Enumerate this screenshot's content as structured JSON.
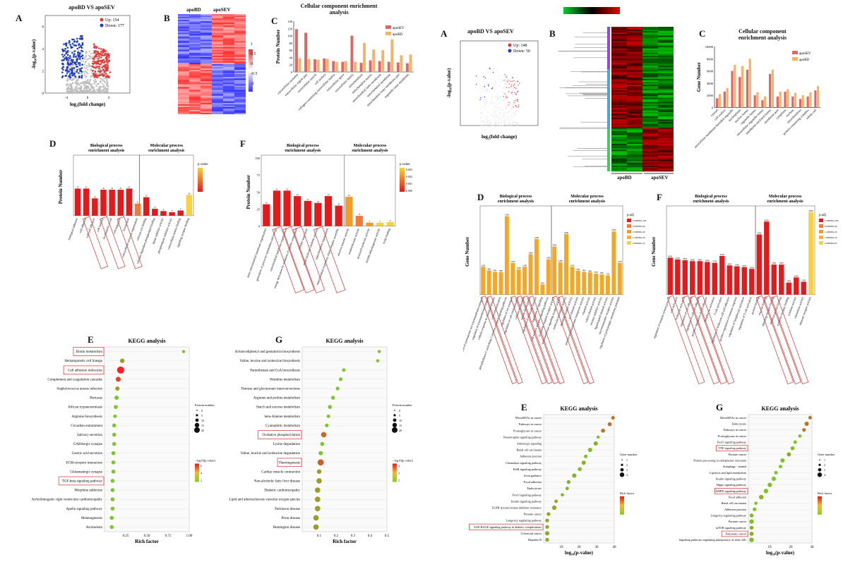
{
  "left": {
    "A": {
      "label": "A",
      "title": "apoBD VS apoSEV",
      "up": "Up: 154",
      "down": "Down: 177",
      "xlabel": "log₂(fold change)",
      "ylabel": "-log₁₀(p-value)",
      "up_color": "#e53935",
      "down_color": "#1f3fbf",
      "ns_color": "#bdbdbd",
      "chart_data": {
        "type": "scatter",
        "title": "apoBD VS apoSEV",
        "xlabel": "log₂(fold change)",
        "ylabel": "-log₁₀(p-value)",
        "xticks": [
          "-4",
          "0",
          "4"
        ],
        "yticks": [
          "0",
          "2",
          "4",
          "6"
        ],
        "series": [
          {
            "name": "Up: 154"
          },
          {
            "name": "Down: 177"
          }
        ]
      }
    },
    "B": {
      "label": "B",
      "col1": "apoBD",
      "col2": "apoSEV",
      "scale": [
        "1",
        "0.5",
        "0",
        "-0.5",
        "-1"
      ]
    },
    "C": {
      "label": "C",
      "title": "Cellular component enrichment analysis",
      "ylabel": "Protein Number",
      "legend": [
        "apoSEV",
        "apoBD"
      ],
      "colors": [
        "#e06666",
        "#f3b36b"
      ],
      "chart_data": {
        "type": "bar",
        "yticks": [
          "0",
          "20",
          "40",
          "60",
          "80",
          "100",
          "120",
          "140"
        ],
        "categories": [
          "extracellular exosome",
          "extracellular region part",
          "extracellular vesicle",
          "cell surface",
          "collagen-containing extracellular matrix",
          "extracellular space",
          "extracellular matrix",
          "mitochondrion",
          "mitochondrial matrix",
          "mitochondrial inner membrane",
          "mitochondrial membrane",
          "mitochondrial inner membrane part",
          "organelle inner membrane"
        ],
        "series": [
          {
            "name": "apoSEV",
            "values": [
              118,
              108,
              35,
              37,
              30,
              28,
              100,
              25,
              32,
              30,
              28,
              26,
              24
            ]
          },
          {
            "name": "apoBD",
            "values": [
              38,
              36,
              34,
              36,
              28,
              30,
              28,
              80,
              62,
              60,
              90,
              46,
              48
            ]
          }
        ]
      }
    },
    "D": {
      "label": "D",
      "title1": "Biological process enrichment analysis",
      "title2": "Molecular process enrichment analysis",
      "ylabel": "Protein Number",
      "legend_title": "p.value",
      "chart_data": {
        "type": "bar",
        "categories": [
          "biological adhesion",
          "cell adhesion",
          "cell-cell adhesion",
          "cell motility",
          "localization of cell",
          "cell migration",
          "locomotion",
          "extracellular structure organization",
          "calcium ion binding",
          "calcium-dependent phospholipid binding",
          "lipase inhibitor activity",
          "phospholipase inhibitor activity",
          "extracellular matrix binding",
          "signaling receptor binding"
        ],
        "values": [
          47,
          47,
          30,
          45,
          45,
          45,
          47,
          21,
          32,
          12,
          8,
          6,
          9,
          36
        ]
      }
    },
    "F": {
      "label": "F",
      "title1": "Biological process enrichment analysis",
      "title2": "Molecular process enrichment analysis",
      "ylabel": "Protein Number",
      "legend_title": "p.value",
      "legend_values": [
        "0.003",
        "0.002",
        "0.001",
        "0.000"
      ],
      "chart_data": {
        "type": "bar",
        "yticks": [
          "0",
          "25",
          "50",
          "75",
          "100"
        ],
        "categories": [
          "inner mitochondrial membrane organization",
          "generation of precursor metabolites and energy",
          "mitochondrial membrane organization",
          "energy derivation by oxidation of organic compounds",
          "cellular respiration",
          "small molecule catabolic process",
          "mitochondrion organization",
          "mitochondrial respiratory chain complex assembly",
          "electron transfer activity",
          "oxidoreductase activity",
          "structural molecule activity",
          "NADH dehydrogenase activity",
          "NAD binding"
        ],
        "values": [
          32,
          52,
          52,
          44,
          37,
          34,
          44,
          30,
          43,
          15,
          5,
          5,
          6
        ]
      }
    },
    "E": {
      "label": "E",
      "title": "KEGG analysis",
      "xlabel": "Rich factor",
      "size_title": "Protein number",
      "size_vals": [
        "0",
        "5",
        "10",
        "15",
        "20"
      ],
      "color_title": "−log10(p.value)",
      "color_vals": [
        "6",
        "4",
        "2"
      ],
      "rows": [
        "Biotin metabolism",
        "Hematopoietic cell lineage",
        "Cell adhesion molecules",
        "Complement and coagulation cascades",
        "Staphylococcus aureus infection",
        "Pertussis",
        "African trypanosomiasis",
        "Arginine biosynthesis",
        "Circadian entrainment",
        "Salivary secretion",
        "GABAergic synapse",
        "Gastric acid secretion",
        "ECM-receptor interaction",
        "Glutamatergic synapse",
        "TGF-beta signaling pathway",
        "Morphine addiction",
        "Arrhythmogenic right ventricular cardiomyopathy",
        "Apelin signaling pathway",
        "Melanogenesis",
        "Alcoholism"
      ],
      "boxed": [
        0,
        2,
        14
      ],
      "xticks": [
        "0.25",
        "0.50",
        "0.75",
        "1.00"
      ],
      "chart_data": {
        "type": "scatter",
        "x": [
          0.98,
          0.22,
          0.2,
          0.17,
          0.16,
          0.15,
          0.14,
          0.13,
          0.12,
          0.12,
          0.12,
          0.11,
          0.11,
          0.11,
          0.1,
          0.1,
          0.1,
          0.1,
          0.09,
          0.09
        ],
        "size": [
          2,
          6,
          20,
          8,
          5,
          5,
          4,
          3,
          4,
          4,
          4,
          4,
          4,
          4,
          4,
          4,
          4,
          4,
          4,
          4
        ],
        "color": [
          2,
          3,
          7,
          5,
          3,
          2,
          2,
          2,
          2,
          2,
          2,
          2,
          2,
          2,
          2,
          2,
          2,
          2,
          2,
          2
        ]
      }
    },
    "G": {
      "label": "G",
      "title": "KEGG analysis",
      "xlabel": "Rich factor",
      "size_title": "Protein number",
      "size_vals": [
        "0",
        "5",
        "10",
        "15",
        "20"
      ],
      "color_title": "−log10(p.value)",
      "color_vals": [
        "4",
        "3",
        "2"
      ],
      "rows": [
        "dichlorodiphenyl and gentamicin biosynthesis",
        "Valine, leucine and isoleucine biosynthesis",
        "Pantothenate and CoA biosynthesis",
        "Histidine metabolism",
        "Pentose and glucuronate interconversions",
        "Arginine and proline metabolism",
        "Starch and sucrose metabolism",
        "beta-Alanine metabolism",
        "Cyanophilic metabolism",
        "Oxidative phosphorylation",
        "Lysine degradation",
        "Valine, leucine and isoleucine degradation",
        "Thermogenesis",
        "Cardiac muscle contraction",
        "Non-alcoholic fatty liver disease",
        "Diabetic cardiomyopathy",
        "Lipid and atherosclerosis vacuolar oxygen species",
        "Parkinson disease",
        "Prion disease",
        "Huntington disease"
      ],
      "boxed": [
        9,
        12
      ],
      "xticks": [
        "0.1",
        "0.2",
        "0.3",
        "0.4",
        "0.5"
      ],
      "chart_data": {
        "type": "scatter",
        "x": [
          0.5,
          0.49,
          0.27,
          0.25,
          0.23,
          0.2,
          0.18,
          0.17,
          0.16,
          0.14,
          0.13,
          0.12,
          0.12,
          0.11,
          0.11,
          0.1,
          0.1,
          0.1,
          0.09,
          0.09
        ],
        "size": [
          2,
          2,
          3,
          3,
          3,
          4,
          4,
          3,
          3,
          10,
          4,
          5,
          14,
          6,
          10,
          10,
          10,
          10,
          10,
          10
        ],
        "color": [
          2,
          2,
          2,
          2,
          2,
          2,
          2,
          2,
          2,
          4.2,
          2,
          2,
          4.5,
          3,
          3,
          3,
          3,
          3,
          3,
          3
        ]
      }
    }
  },
  "right": {
    "A": {
      "label": "A",
      "title": "apoBD VS apoSEV",
      "up": "Up: 148",
      "down": "Down: 50",
      "xlabel": "log₂(fold change)",
      "ylabel": "-log₁₀(p-value)",
      "up_color": "#e53935",
      "down_color": "#1f3fbf"
    },
    "B": {
      "label": "B",
      "col1": "apoBD",
      "col2": "apoSEV",
      "scale_label": "Scale bar"
    },
    "C": {
      "label": "C",
      "title": "Cellular component enrichment analysis",
      "ylabel": "Gene Number",
      "legend": [
        "apoSEV",
        "apoBD"
      ],
      "yticks": [
        "0",
        "2000",
        "4000",
        "6000",
        "8000",
        "10000"
      ],
      "chart_data": {
        "type": "bar",
        "categories": [
          "cytosol",
          "cell surface",
          "intracellular membrane-bounded organelle",
          "nucleoplasm",
          "nuclear lumen",
          "organelle lumen",
          "intracellular organelle lumen",
          "membrane-enclosed lumen",
          "membrane part",
          "cytoplasm",
          "nucleus",
          "mitochondrion",
          "protein-containing complex",
          "whole cell"
        ],
        "series": [
          {
            "name": "apoSEV",
            "values": [
              1500,
              2600,
              6000,
              5000,
              6200,
              2000,
              1200,
              5500,
              1800,
              2600,
              1800,
              1400,
              1800,
              2800
            ]
          },
          {
            "name": "apoBD",
            "values": [
              2200,
              3200,
              7000,
              6800,
              8000,
              2500,
              1800,
              6200,
              2600,
              3000,
              2400,
              2000,
              2500,
              3500
            ]
          }
        ]
      }
    },
    "D": {
      "label": "D",
      "title1": "Biological process enrichment analysis",
      "title2": "Molecular process enrichment analysis",
      "ylabel": "Gene Number",
      "legend_title": "p.adj",
      "legend_vals": [
        "2.500000e-100",
        "5.000000e-60",
        "1.000000e-40",
        "1.500000e-20",
        "2.000000e-10"
      ],
      "chart_data": {
        "type": "bar",
        "categories": [
          "regulation of monoatomic ion transmembrane transport",
          "regulation of transmembrane transport",
          "cellular response to chemical stimulus",
          "cell communication",
          "phospholipase C-activating G protein-coupled signaling pathway",
          "regulation of ion transport",
          "regulation of cell communication",
          "cellular localization",
          "system development",
          "regulation of molecular function",
          "regulation of signaling",
          "cell surface receptor signaling pathway",
          "G protein-coupled receptor activity",
          "transmembrane signaling receptor activity",
          "molecular transducer activity",
          "signaling receptor activity",
          "ion channel activity",
          "passive transmembrane transporter activity",
          "channel activity",
          "cation channel activity",
          "enzyme inhibitor activity",
          "ligand-gated channel activity",
          "neurotransmitter receptor activity",
          "regulation of postsynaptic membrane potential"
        ],
        "values": [
          1100,
          960,
          900,
          890,
          3100,
          1250,
          1000,
          1100,
          1600,
          2200,
          400,
          1400,
          1900,
          1280,
          2400,
          1100,
          950,
          900,
          880,
          830,
          800,
          760,
          2500,
          1250
        ]
      }
    },
    "F": {
      "label": "F",
      "title1": "Biological process enrichment analysis",
      "title2": "Molecular process enrichment analysis",
      "ylabel": "Gene Number",
      "legend_title": "p.adj",
      "legend_vals": [
        "1.000000e-200",
        "6.000000e-40",
        "1.200000e-20",
        "1.800000e-10",
        "2.400000e-05"
      ],
      "chart_data": {
        "type": "bar",
        "categories": [
          "regulation of immune system process",
          "cell activation",
          "leukocyte activation",
          "regulation of cell adhesion",
          "regulation of cell-cell adhesion",
          "positive regulation of cell adhesion",
          "lymphocyte activation",
          "T cell activation",
          "regulation of leukocyte cell-cell adhesion",
          "positive regulation of immune response",
          "regulation of lymphocyte activation",
          "regulation of T cell activation",
          "protein binding",
          "enzyme binding",
          "signaling receptor binding",
          "identical protein binding",
          "cytokine receptor binding",
          "cytokine activity",
          "chemokine activity",
          "immune receptor activity"
        ],
        "values": [
          4300,
          4100,
          4000,
          3900,
          3900,
          3800,
          3700,
          4500,
          3400,
          3300,
          3200,
          3000,
          7000,
          8500,
          3500,
          3500,
          1400,
          2000,
          1500,
          9600
        ]
      }
    },
    "E": {
      "label": "E",
      "title": "KEGG analysis",
      "xlabel": "log₁₀(p-value)",
      "size_title": "Gene number",
      "color_title": "Rich factor",
      "rows": [
        "MicroRNAs in cancer",
        "Pathways in cancer",
        "Proteoglycans in cancer",
        "Neurotrophin signaling pathway",
        "Adrenergic signaling",
        "Renal cell carcinoma",
        "Adherens junction",
        "Chemokine signaling pathway",
        "ErbB signaling pathway",
        "Axon guidance",
        "Focal adhesion",
        "Endocytosis",
        "FoxO signaling pathway",
        "Insulin signaling pathway",
        "EGFR tyrosine kinase inhibitor resistance",
        "Prostate cancer",
        "Longevity regulating pathway",
        "AGE-RAGE signaling pathway in diabetic complications",
        "Colorectal cancer",
        "Hepatitis B"
      ],
      "boxed": [
        17
      ],
      "xticks": [
        "10",
        "20",
        "30",
        "40"
      ]
    },
    "G": {
      "label": "G",
      "title": "KEGG analysis",
      "xlabel": "log₁₀(p-value)",
      "size_title": "Gene number",
      "color_title": "Rich factor",
      "rows": [
        "MicroRNAs in cancer",
        "Endocytosis",
        "Pathways in cancer",
        "Proteoglycans in cancer",
        "FoxO signaling pathway",
        "TNF signaling pathway",
        "Prostate cancer",
        "Protein processing in endoplasmic reticulum",
        "Autophagy - animal",
        "Lipolysis and lipid metabolism",
        "Insulin signaling pathway",
        "Hippo signaling pathway",
        "AMPK signaling pathway",
        "Focal adhesion",
        "Renal cell carcinoma",
        "Adherens junction",
        "Longevity regulating pathway",
        "Prostate cancer",
        "mTOR signaling pathway",
        "Pancreatic cancer",
        "Signaling pathways regulating pluripotency of stem cells"
      ],
      "boxed": [
        5,
        12,
        19
      ],
      "xticks": [
        "10",
        "20",
        "30"
      ]
    }
  }
}
